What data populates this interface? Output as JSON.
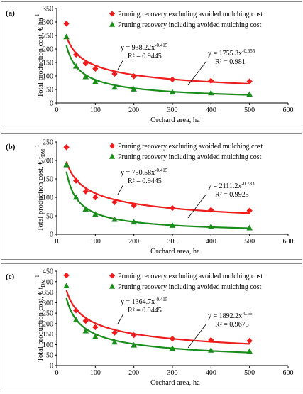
{
  "figure": {
    "background": "#ffffff",
    "frame_color": "#8c8c8c"
  },
  "chart_data": [
    {
      "type": "scatter",
      "panel_label": "(a)",
      "xlabel": "Orchard area, ha",
      "ylabel": "Total production cost, € ha",
      "ylabel_sup": "-1",
      "ylabel_sub": "",
      "xlim": [
        0,
        600
      ],
      "ylim": [
        0,
        350
      ],
      "xticks": [
        0,
        100,
        200,
        300,
        400,
        500,
        600
      ],
      "yticks": [
        0,
        50,
        100,
        150,
        200,
        250,
        300,
        350
      ],
      "grid": false,
      "legend_position": "top-right",
      "series": [
        {
          "name": "Pruning recovery excluding avoided mulching cost",
          "color": "#ee1c1c",
          "marker": "diamond",
          "x": [
            25,
            50,
            75,
            100,
            150,
            200,
            300,
            400,
            500
          ],
          "y": [
            294,
            179,
            147,
            127,
            108,
            99,
            87,
            82,
            80
          ],
          "trend": {
            "a": 938.22,
            "b": -0.415,
            "equation": "y = 938.22x",
            "exponent": "-0.415",
            "r2": "R² = 0.9445"
          }
        },
        {
          "name": "Pruning recovery including avoided  mulching cost",
          "color": "#1a8c1a",
          "marker": "triangle",
          "x": [
            25,
            50,
            75,
            100,
            150,
            200,
            300,
            400,
            500
          ],
          "y": [
            245,
            136,
            97,
            78,
            58,
            51,
            40,
            37,
            32
          ],
          "trend": {
            "a": 1755.3,
            "b": -0.655,
            "equation": "y = 1755.3x",
            "exponent": "-0.655",
            "r2": "R² = 0.981"
          }
        }
      ]
    },
    {
      "type": "scatter",
      "panel_label": "(b)",
      "xlabel": "Orchard area, ha",
      "ylabel": "Total production cost, € t",
      "ylabel_sup": "-1",
      "ylabel_sub": "DM",
      "xlim": [
        0,
        600
      ],
      "ylim": [
        0,
        250
      ],
      "xticks": [
        0,
        100,
        200,
        300,
        400,
        500,
        600
      ],
      "yticks": [
        0,
        50,
        100,
        150,
        200,
        250
      ],
      "grid": false,
      "legend_position": "top-right",
      "series": [
        {
          "name": "Pruning recovery excluding avoided mulching cost",
          "color": "#ee1c1c",
          "marker": "diamond",
          "x": [
            25,
            50,
            75,
            100,
            150,
            200,
            300,
            400,
            500
          ],
          "y": [
            236,
            145,
            116,
            100,
            87,
            78,
            71,
            66,
            64
          ],
          "trend": {
            "a": 750.58,
            "b": -0.415,
            "equation": "y = 750.58x",
            "exponent": "-0.415",
            "r2": "R² = 0.9445"
          }
        },
        {
          "name": "Pruning recovery including avoided mulching cost",
          "color": "#1a8c1a",
          "marker": "triangle",
          "x": [
            25,
            50,
            75,
            100,
            150,
            200,
            300,
            400,
            500
          ],
          "y": [
            188,
            100,
            68,
            54,
            40,
            33,
            24,
            21,
            17
          ],
          "trend": {
            "a": 2111.2,
            "b": -0.783,
            "equation": "y = 2111.2x",
            "exponent": "-0.783",
            "r2": "R² = 0.9925"
          }
        }
      ]
    },
    {
      "type": "scatter",
      "panel_label": "(c)",
      "xlabel": "Orchard area, ha",
      "ylabel": "Total production cost, € t",
      "ylabel_sup": "-1",
      "ylabel_sub": "DM",
      "xlim": [
        0,
        600
      ],
      "ylim": [
        0,
        450
      ],
      "xticks": [
        0,
        100,
        200,
        300,
        400,
        500,
        600
      ],
      "yticks": [
        0,
        50,
        100,
        150,
        200,
        250,
        300,
        350,
        400,
        450
      ],
      "grid": false,
      "legend_position": "top-right",
      "series": [
        {
          "name": "Pruning recovery excluding avoided mulching cost",
          "color": "#ee1c1c",
          "marker": "diamond",
          "x": [
            25,
            50,
            75,
            100,
            150,
            200,
            300,
            400,
            500
          ],
          "y": [
            430,
            263,
            213,
            183,
            157,
            145,
            128,
            122,
            118
          ],
          "trend": {
            "a": 1364.7,
            "b": -0.415,
            "equation": "y = 1364.7x",
            "exponent": "-0.415",
            "r2": "R² = 0.9445"
          }
        },
        {
          "name": "Pruning recovery including avoided mulching cost",
          "color": "#1a8c1a",
          "marker": "triangle",
          "x": [
            25,
            50,
            75,
            100,
            150,
            200,
            300,
            400,
            500
          ],
          "y": [
            380,
            218,
            165,
            137,
            112,
            97,
            82,
            73,
            68
          ],
          "trend": {
            "a": 1892.2,
            "b": -0.55,
            "equation": "y = 1892.2x",
            "exponent": "-0.55",
            "r2": "R² = 0.9675"
          }
        }
      ]
    }
  ]
}
